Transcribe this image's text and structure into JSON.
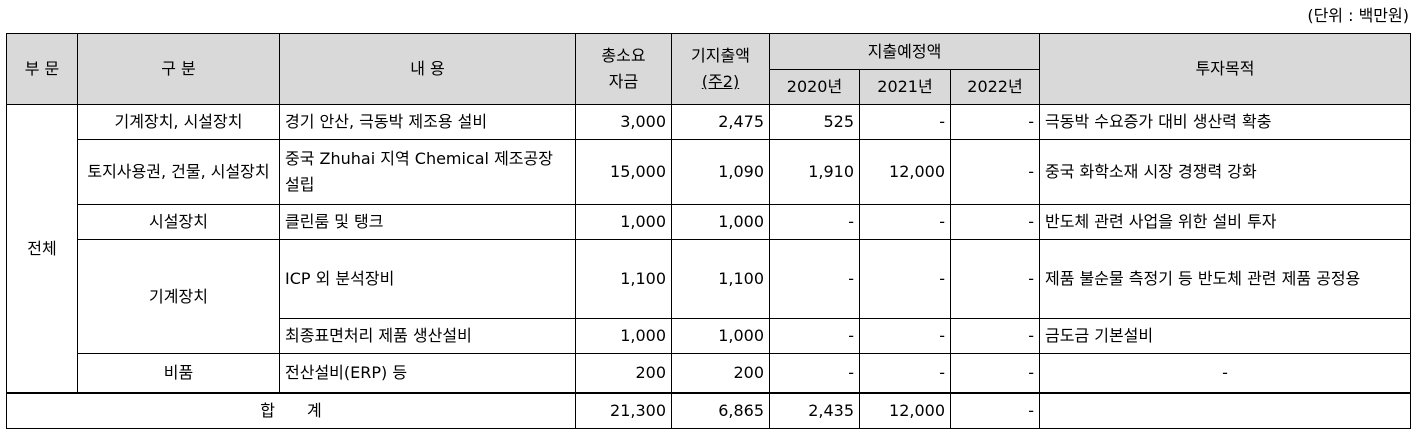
{
  "unit_note": "(단위 : 백만원)",
  "headers": {
    "division": "부 문",
    "category": "구 분",
    "content": "내 용",
    "total_funds_1": "총소요",
    "total_funds_2": "자금",
    "spent_1": "기지출액",
    "spent_2": "(주2)",
    "planned": "지출예정액",
    "y2020": "2020년",
    "y2021": "2021년",
    "y2022": "2022년",
    "purpose": "투자목적"
  },
  "division_value": "전체",
  "rows": [
    {
      "category": "기계장치, 시설장치",
      "content": "경기 안산, 극동박 제조용 설비",
      "total": "3,000",
      "spent": "2,475",
      "y2020": "525",
      "y2021": "-",
      "y2022": "-",
      "purpose": "극동박 수요증가 대비 생산력 확충"
    },
    {
      "category": "토지사용권, 건물, 시설장치",
      "content": "중국 Zhuhai 지역 Chemical 제조공장 설립",
      "total": "15,000",
      "spent": "1,090",
      "y2020": "1,910",
      "y2021": "12,000",
      "y2022": "-",
      "purpose": "중국 화학소재 시장 경쟁력 강화"
    },
    {
      "category": "시설장치",
      "content": "클린룸 및 탱크",
      "total": "1,000",
      "spent": "1,000",
      "y2020": "-",
      "y2021": "-",
      "y2022": "-",
      "purpose": "반도체 관련 사업을 위한 설비 투자"
    },
    {
      "category": "기계장치",
      "content": "ICP 외 분석장비",
      "total": "1,100",
      "spent": "1,100",
      "y2020": "-",
      "y2021": "-",
      "y2022": "-",
      "purpose": "제품 불순물 측정기 등 반도체 관련 제품 공정용"
    },
    {
      "category": "",
      "content": "최종표면처리 제품 생산설비",
      "total": "1,000",
      "spent": "1,000",
      "y2020": "-",
      "y2021": "-",
      "y2022": "-",
      "purpose": "금도금 기본설비"
    },
    {
      "category": "비품",
      "content": "전산설비(ERP) 등",
      "total": "200",
      "spent": "200",
      "y2020": "-",
      "y2021": "-",
      "y2022": "-",
      "purpose": "-"
    }
  ],
  "total_row": {
    "label": "합　　계",
    "total": "21,300",
    "spent": "6,865",
    "y2020": "2,435",
    "y2021": "12,000",
    "y2022": "-",
    "purpose": ""
  }
}
